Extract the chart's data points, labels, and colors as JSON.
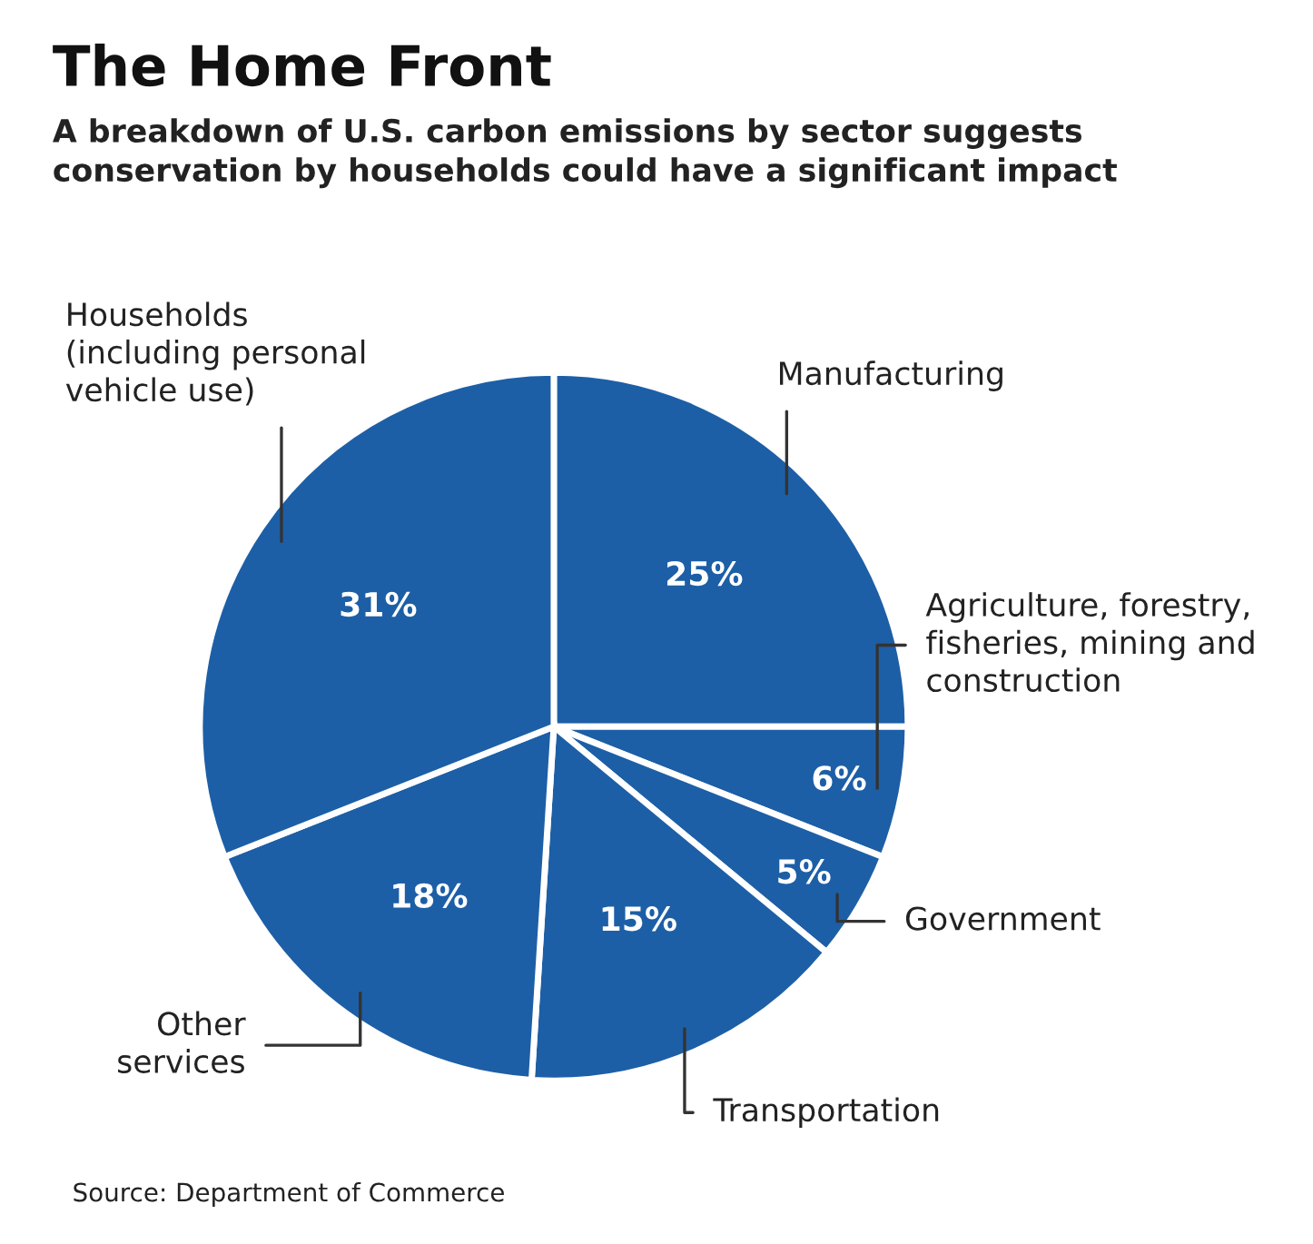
{
  "chart_data": {
    "type": "pie",
    "title": "The Home Front",
    "subtitle": "A breakdown of U.S. carbon emissions by sector suggests\nconservation by households could have a significant impact",
    "categories": [
      "Manufacturing",
      "Agriculture, forestry,\nfisheries, mining and\nconstruction",
      "Government",
      "Transportation",
      "Other\nservices",
      "Households\n(including personal\nvehicle use)"
    ],
    "values": [
      25,
      6,
      5,
      15,
      18,
      31
    ],
    "value_labels": [
      "25%",
      "6%",
      "5%",
      "15%",
      "18%",
      "31%"
    ],
    "colors": [
      "#1d5fa6",
      "#1d5fa6",
      "#1d5fa6",
      "#1d5fa6",
      "#1d5fa6",
      "#1d5fa6"
    ],
    "annotations": [
      "Source: Department of Commerce"
    ]
  }
}
